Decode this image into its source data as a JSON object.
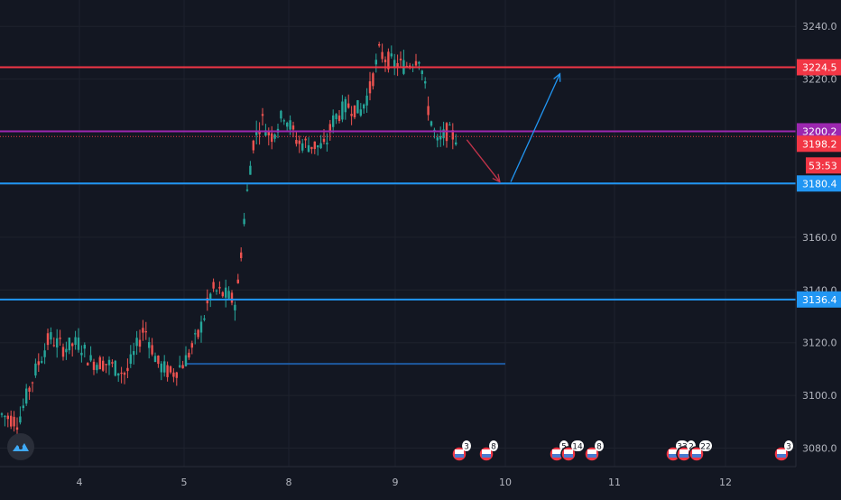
{
  "chart_data": {
    "type": "candlestick",
    "y_axis": {
      "ylim": [
        3073,
        3250
      ],
      "tick_labels": [
        "3240.0",
        "3220.0",
        "3160.0",
        "3140.0",
        "3120.0",
        "3100.0",
        "3080.0"
      ],
      "tick_values": [
        3240,
        3220,
        3160,
        3140,
        3120,
        3100,
        3080
      ]
    },
    "x_axis": {
      "tick_labels": [
        "4",
        "5",
        "8",
        "9",
        "10",
        "11",
        "12"
      ]
    },
    "horizontal_levels": [
      {
        "value": 3224.5,
        "label": "3224.5",
        "color": "#f23645"
      },
      {
        "value": 3200.2,
        "label": "3200.2",
        "color": "#9c27b0"
      },
      {
        "value": 3180.4,
        "label": "3180.4",
        "color": "#2196f3"
      },
      {
        "value": 3136.4,
        "label": "3136.4",
        "color": "#2196f3"
      }
    ],
    "current_price": {
      "value": 3198.2,
      "label": "3198.2",
      "countdown": "53:53",
      "color": "#f23645"
    },
    "segment_line": {
      "value": 3112,
      "color": "#1e5aa0"
    },
    "arrows": [
      {
        "from": [
          9.65,
          3197
        ],
        "to": [
          9.95,
          3181
        ],
        "color": "#c2334a"
      },
      {
        "from": [
          10.05,
          3181
        ],
        "to": [
          10.5,
          3222
        ],
        "color": "#2196f3"
      }
    ],
    "event_labels": [
      "3",
      "8",
      "5",
      "14",
      "8",
      "33",
      "2",
      "22",
      "3"
    ],
    "colors": {
      "up": "#26a69a",
      "down": "#ef5350",
      "background": "#131722",
      "grid": "#1e222d",
      "text": "#b2b5be"
    }
  }
}
